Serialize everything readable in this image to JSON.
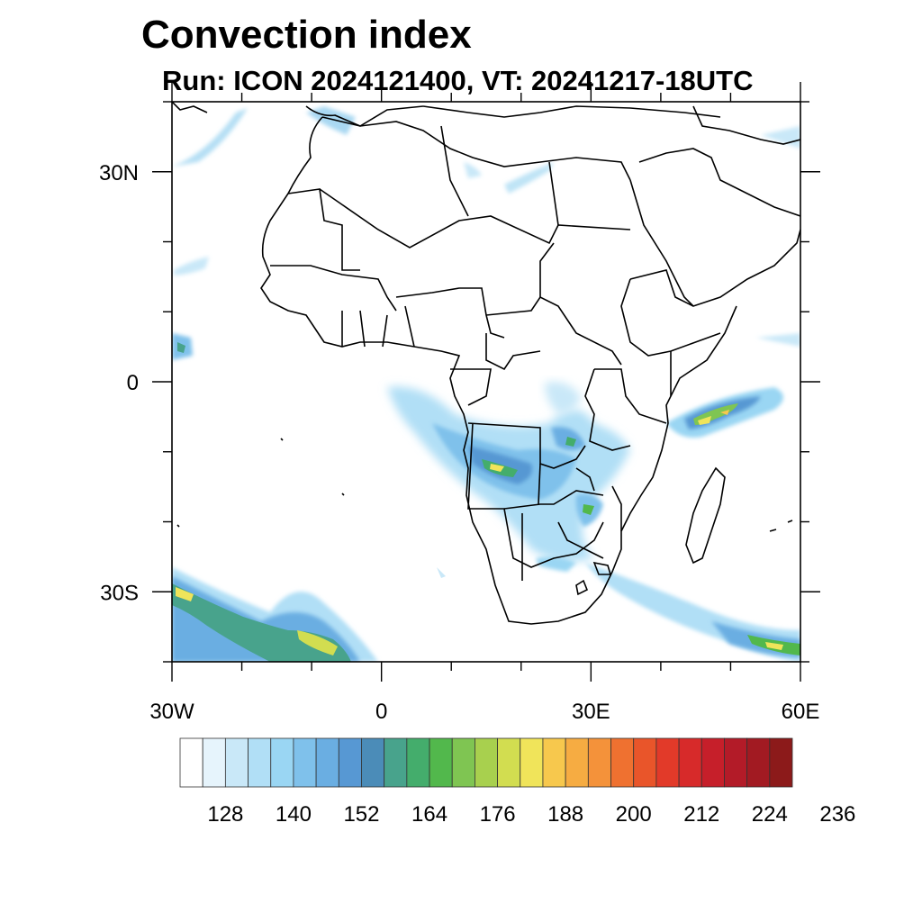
{
  "title": "Convection index",
  "subtitle": "Run: ICON 2024121400,  VT: 20241217-18UTC",
  "map": {
    "lon_range": [
      -30,
      60
    ],
    "lat_range": [
      -40,
      40
    ],
    "x_ticks": [
      {
        "value": -30,
        "label": "30W"
      },
      {
        "value": 0,
        "label": "0"
      },
      {
        "value": 30,
        "label": "30E"
      },
      {
        "value": 60,
        "label": "60E"
      }
    ],
    "y_ticks": [
      {
        "value": 30,
        "label": "30N"
      },
      {
        "value": 0,
        "label": "0"
      },
      {
        "value": -30,
        "label": "30S"
      }
    ]
  },
  "chart_data": {
    "type": "heatmap",
    "title": "Convection index",
    "subtitle": "Run: ICON 2024121400,  VT: 20241217-18UTC",
    "colorbar": {
      "labels": [
        "128",
        "140",
        "152",
        "164",
        "176",
        "188",
        "200",
        "212",
        "224",
        "236"
      ],
      "colors": [
        "#ffffff",
        "#e6f4fc",
        "#c9e8f8",
        "#b1dff6",
        "#9ad6f3",
        "#7fc1eb",
        "#6aaee2",
        "#5798d3",
        "#4b8cb8",
        "#48a38c",
        "#44ad6c",
        "#52b84c",
        "#7fc552",
        "#a8d04e",
        "#d2dd50",
        "#f0e45a",
        "#f7c84d",
        "#f6ac42",
        "#f4923a",
        "#ef7130",
        "#e9552a",
        "#e23a29",
        "#d72a2a",
        "#c61f2a",
        "#b31b28",
        "#a21a22",
        "#8c1a1a"
      ]
    }
  }
}
